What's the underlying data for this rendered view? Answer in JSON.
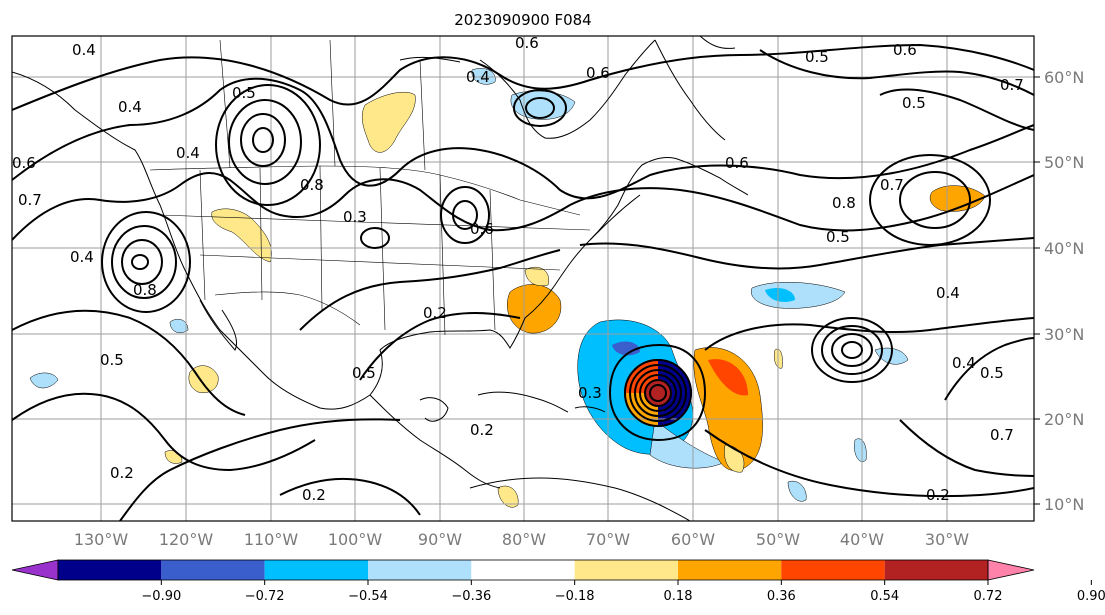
{
  "title": "2023090900 F084",
  "lon_labels": [
    "130°W",
    "120°W",
    "110°W",
    "100°W",
    "90°W",
    "80°W",
    "70°W",
    "60°W",
    "50°W",
    "40°W",
    "30°W"
  ],
  "lat_labels": [
    "60°N",
    "50°N",
    "40°N",
    "30°N",
    "20°N",
    "10°N"
  ],
  "colorbar": {
    "labels": [
      "−0.90",
      "−0.72",
      "−0.54",
      "−0.36",
      "−0.18",
      "0.18",
      "0.36",
      "0.54",
      "0.72",
      "0.90"
    ],
    "colors": [
      "#9932cc",
      "#00008b",
      "#3a5fcd",
      "#00bfff",
      "#aee0fb",
      "#ffffff",
      "#ffe88a",
      "#ffa500",
      "#ff4500",
      "#b22222",
      "#ff82ab"
    ]
  },
  "contour_labels": [
    "0.4",
    "0.5",
    "0.6",
    "0.6",
    "0.5",
    "0.4",
    "0.4",
    "0.5",
    "0.6",
    "0.7",
    "0.4",
    "0.8",
    "0.6",
    "0.5",
    "0.2",
    "0.3",
    "0.6",
    "0.8",
    "0.5",
    "0.7",
    "0.4",
    "0.2",
    "0.4",
    "0.5",
    "0.2",
    "0.2",
    "0.2",
    "0.3",
    "0.4",
    "0.5",
    "0.7",
    "0.6",
    "0.7",
    "0.8"
  ]
}
